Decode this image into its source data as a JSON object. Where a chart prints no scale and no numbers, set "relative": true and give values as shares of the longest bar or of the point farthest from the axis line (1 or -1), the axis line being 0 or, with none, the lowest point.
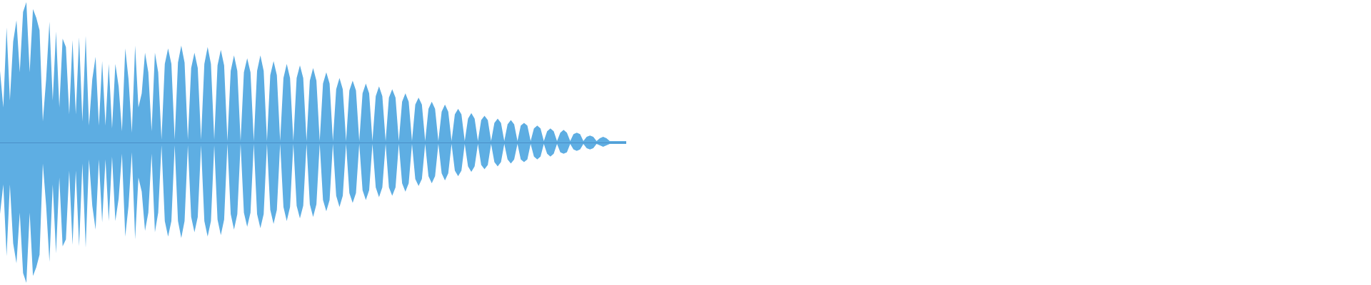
{
  "chart_data": {
    "type": "area",
    "relative": true,
    "categories": [
      null,
      null,
      null,
      null,
      null,
      null,
      null,
      null,
      null,
      null,
      null,
      null,
      null,
      null,
      null,
      null,
      null,
      null,
      null,
      null,
      null,
      null,
      null,
      null,
      null,
      null,
      null,
      null,
      null,
      null,
      null,
      null,
      null,
      null,
      null,
      null,
      null,
      null,
      null,
      null,
      null,
      null,
      null,
      null,
      null,
      null,
      null,
      null,
      null,
      null,
      null,
      null,
      null,
      null,
      null,
      null,
      null,
      null,
      null,
      null,
      null,
      null,
      null,
      null,
      null,
      null,
      null,
      null,
      null,
      null,
      null,
      null,
      null,
      null,
      null,
      null,
      null,
      null,
      null,
      null,
      null,
      null,
      null,
      null,
      null,
      null,
      null,
      null,
      null,
      null,
      null,
      null,
      null,
      null,
      null,
      null,
      null,
      null,
      null,
      null,
      null,
      null,
      null,
      null,
      null,
      null,
      null,
      null,
      null,
      null,
      null,
      null,
      null,
      null,
      null,
      null,
      null,
      null,
      null,
      null,
      null,
      null,
      null,
      null,
      null,
      null,
      null,
      null,
      null,
      null,
      null,
      null,
      null,
      null,
      null,
      null,
      null,
      null,
      null,
      null,
      null,
      null,
      null,
      null,
      null,
      null,
      null,
      null,
      null,
      null,
      null,
      null,
      null,
      null,
      null,
      null,
      null,
      null,
      null,
      null,
      null,
      null,
      null,
      null,
      null,
      null,
      null,
      null,
      null,
      null,
      null,
      null,
      null,
      null,
      null,
      null,
      null,
      null,
      null,
      null,
      null,
      null,
      null,
      null,
      null,
      null,
      null,
      null,
      null,
      null,
      null
    ],
    "series": [
      {
        "color": "#5dade2",
        "values": [
          0.51,
          0.25,
          0.82,
          0.3,
          0.72,
          0.87,
          0.5,
          0.93,
          1,
          0.5,
          0.95,
          0.89,
          0.8,
          0.15,
          0.45,
          0.86,
          0.3,
          0.79,
          0.25,
          0.74,
          0.68,
          0.2,
          0.73,
          0.2,
          0.75,
          0.15,
          0.76,
          0.12,
          0.45,
          0.61,
          0.12,
          0.58,
          0.12,
          0.56,
          0.1,
          0.56,
          0.4,
          0.08,
          0.67,
          0.45,
          0.07,
          0.69,
          0.25,
          0.35,
          0.64,
          0.5,
          0.08,
          0.64,
          0.5,
          0.02,
          0.56,
          0.67,
          0.56,
          0.02,
          0.57,
          0.69,
          0.57,
          0.02,
          0.53,
          0.64,
          0.53,
          0.02,
          0.56,
          0.68,
          0.56,
          0.02,
          0.55,
          0.66,
          0.55,
          0.01,
          0.51,
          0.62,
          0.51,
          0.01,
          0.5,
          0.6,
          0.5,
          0.01,
          0.51,
          0.62,
          0.51,
          0.01,
          0.48,
          0.58,
          0.48,
          0.01,
          0.46,
          0.56,
          0.46,
          0.01,
          0.46,
          0.55,
          0.46,
          0.01,
          0.44,
          0.53,
          0.44,
          0.01,
          0.42,
          0.5,
          0.42,
          0.01,
          0.38,
          0.46,
          0.38,
          0.01,
          0.37,
          0.44,
          0.37,
          0.01,
          0.35,
          0.42,
          0.35,
          0.01,
          0.33,
          0.4,
          0.33,
          0.01,
          0.32,
          0.38,
          0.32,
          0.01,
          0.29,
          0.35,
          0.29,
          0.01,
          0.27,
          0.32,
          0.27,
          0.01,
          0.24,
          0.29,
          0.24,
          0.01,
          0.22,
          0.27,
          0.22,
          0.01,
          0.2,
          0.24,
          0.2,
          0.01,
          0.17,
          0.21,
          0.17,
          0.01,
          0.16,
          0.19,
          0.16,
          0.01,
          0.14,
          0.17,
          0.14,
          0.01,
          0.13,
          0.16,
          0.13,
          0.01,
          0.12,
          0.14,
          0.12,
          0.01,
          0.1,
          0.12,
          0.1,
          0.01,
          0.08,
          0.1,
          0.08,
          0.01,
          0.07,
          0.09,
          0.07,
          0.01,
          0.06,
          0.07,
          0.06,
          0.01,
          0.04,
          0.05,
          0.04,
          0.01,
          0.03,
          0.04,
          0.03,
          0.01,
          0.01,
          0.01,
          0.01,
          0.01,
          0.01
        ]
      },
      {
        "color": "#5eaee3",
        "values": [
          -0.51,
          -0.3,
          -0.81,
          -0.3,
          -0.72,
          -0.86,
          -0.5,
          -0.93,
          -1,
          -0.5,
          -0.95,
          -0.89,
          -0.8,
          -0.15,
          -0.45,
          -0.85,
          -0.3,
          -0.79,
          -0.25,
          -0.74,
          -0.69,
          -0.2,
          -0.73,
          -0.2,
          -0.74,
          -0.15,
          -0.75,
          -0.12,
          -0.45,
          -0.62,
          -0.12,
          -0.57,
          -0.12,
          -0.56,
          -0.1,
          -0.56,
          -0.4,
          -0.08,
          -0.67,
          -0.45,
          -0.07,
          -0.69,
          -0.25,
          -0.35,
          -0.63,
          -0.5,
          -0.08,
          -0.64,
          -0.5,
          -0.02,
          -0.56,
          -0.67,
          -0.56,
          -0.02,
          -0.56,
          -0.68,
          -0.56,
          -0.02,
          -0.53,
          -0.64,
          -0.53,
          -0.02,
          -0.56,
          -0.67,
          -0.56,
          -0.02,
          -0.55,
          -0.66,
          -0.55,
          -0.01,
          -0.51,
          -0.62,
          -0.51,
          -0.01,
          -0.5,
          -0.6,
          -0.5,
          -0.01,
          -0.51,
          -0.61,
          -0.51,
          -0.01,
          -0.48,
          -0.58,
          -0.48,
          -0.01,
          -0.46,
          -0.56,
          -0.46,
          -0.01,
          -0.45,
          -0.54,
          -0.45,
          -0.01,
          -0.44,
          -0.53,
          -0.44,
          -0.01,
          -0.41,
          -0.49,
          -0.41,
          -0.01,
          -0.38,
          -0.46,
          -0.38,
          -0.01,
          -0.36,
          -0.43,
          -0.36,
          -0.01,
          -0.34,
          -0.41,
          -0.34,
          -0.01,
          -0.32,
          -0.39,
          -0.32,
          -0.01,
          -0.32,
          -0.38,
          -0.32,
          -0.01,
          -0.29,
          -0.35,
          -0.29,
          -0.01,
          -0.26,
          -0.31,
          -0.26,
          -0.01,
          -0.24,
          -0.29,
          -0.24,
          -0.01,
          -0.22,
          -0.27,
          -0.22,
          -0.01,
          -0.2,
          -0.24,
          -0.2,
          -0.01,
          -0.17,
          -0.21,
          -0.17,
          -0.01,
          -0.16,
          -0.19,
          -0.16,
          -0.01,
          -0.14,
          -0.17,
          -0.14,
          -0.01,
          -0.12,
          -0.15,
          -0.12,
          -0.01,
          -0.12,
          -0.14,
          -0.12,
          -0.01,
          -0.1,
          -0.12,
          -0.1,
          -0.01,
          -0.08,
          -0.1,
          -0.08,
          -0.01,
          -0.07,
          -0.08,
          -0.07,
          -0.01,
          -0.05,
          -0.06,
          -0.05,
          -0.01,
          -0.04,
          -0.05,
          -0.04,
          -0.01,
          -0.02,
          -0.03,
          -0.02,
          -0.01,
          -0.01,
          -0.01,
          -0.01,
          -0.01,
          -0.01
        ]
      }
    ],
    "ref_lines": [
      {
        "axis": "y",
        "value": 0,
        "color": "#4a90c8"
      }
    ]
  }
}
